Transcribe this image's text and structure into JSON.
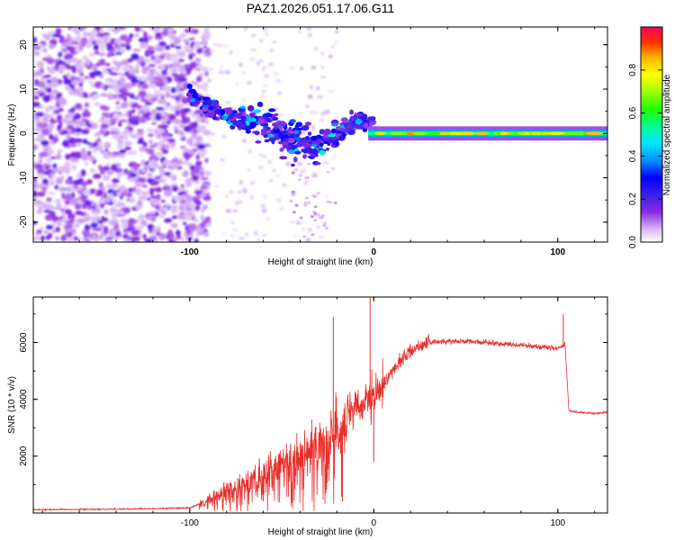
{
  "title": "PAZ1.2026.051.17.06.G11",
  "chart_data": [
    {
      "type": "heatmap",
      "name": "spectrogram",
      "xlabel": "Height of straight line (km)",
      "ylabel": "Frequency (Hz)",
      "xlim": [
        -185,
        127
      ],
      "ylim": [
        -24.5,
        24
      ],
      "xticks": [
        -100,
        0,
        100
      ],
      "xtick_labels": [
        "-100",
        "0",
        "100"
      ],
      "yticks": [
        -20,
        -10,
        0,
        10,
        20
      ],
      "ytick_labels": [
        "-20",
        "-10",
        "0",
        "10",
        "20"
      ],
      "colorbar": {
        "label": "Normalized spectral amplitude",
        "range": [
          0,
          1
        ],
        "ticks": [
          0.0,
          0.2,
          0.4,
          0.6,
          0.8
        ],
        "tick_labels": [
          "0.0",
          "0.2",
          "0.4",
          "0.6",
          "0.8"
        ]
      },
      "features": {
        "noise_region_x": [
          -185,
          -90
        ],
        "descending_track": [
          [
            -100,
            9
          ],
          [
            -90,
            6
          ],
          [
            -80,
            4
          ],
          [
            -70,
            3
          ],
          [
            -60,
            2
          ],
          [
            -50,
            0
          ],
          [
            -40,
            -2
          ],
          [
            -30,
            -3
          ],
          [
            -20,
            0
          ],
          [
            -10,
            3
          ],
          [
            0,
            2
          ]
        ],
        "steady_signal_x": [
          0,
          127
        ],
        "steady_signal_freq": 0
      }
    },
    {
      "type": "line",
      "name": "snr",
      "xlabel": "Height of straight line (km)",
      "ylabel": "SNR (10 * v/v)",
      "xlim": [
        -185,
        127
      ],
      "ylim": [
        0,
        7600
      ],
      "xticks": [
        -100,
        0,
        100
      ],
      "xtick_labels": [
        "-100",
        "0",
        "100"
      ],
      "yticks": [
        2000,
        4000,
        6000
      ],
      "ytick_labels": [
        "2000",
        "4000",
        "6000"
      ],
      "color": "#e8302c",
      "series": [
        {
          "name": "SNR",
          "x": [
            -185,
            -150,
            -120,
            -100,
            -90,
            -80,
            -70,
            -60,
            -50,
            -40,
            -30,
            -25,
            -20,
            -15,
            -10,
            -5,
            0,
            5,
            10,
            15,
            20,
            25,
            30,
            40,
            50,
            60,
            70,
            80,
            90,
            100,
            104,
            106,
            110,
            120,
            127
          ],
          "y": [
            120,
            130,
            150,
            180,
            450,
            800,
            1100,
            1400,
            1700,
            2000,
            2400,
            2700,
            3000,
            3300,
            3600,
            3800,
            4000,
            4500,
            5000,
            5400,
            5700,
            5900,
            6000,
            6050,
            6050,
            6000,
            5950,
            5900,
            5850,
            5800,
            5900,
            3600,
            3550,
            3500,
            3550
          ]
        }
      ],
      "spikes": [
        {
          "x": -22,
          "y": 6900
        },
        {
          "x": -17,
          "y": 400
        },
        {
          "x": -2,
          "y": 7600
        },
        {
          "x": 0,
          "y": 1800
        },
        {
          "x": 103,
          "y": 7000
        }
      ]
    }
  ]
}
